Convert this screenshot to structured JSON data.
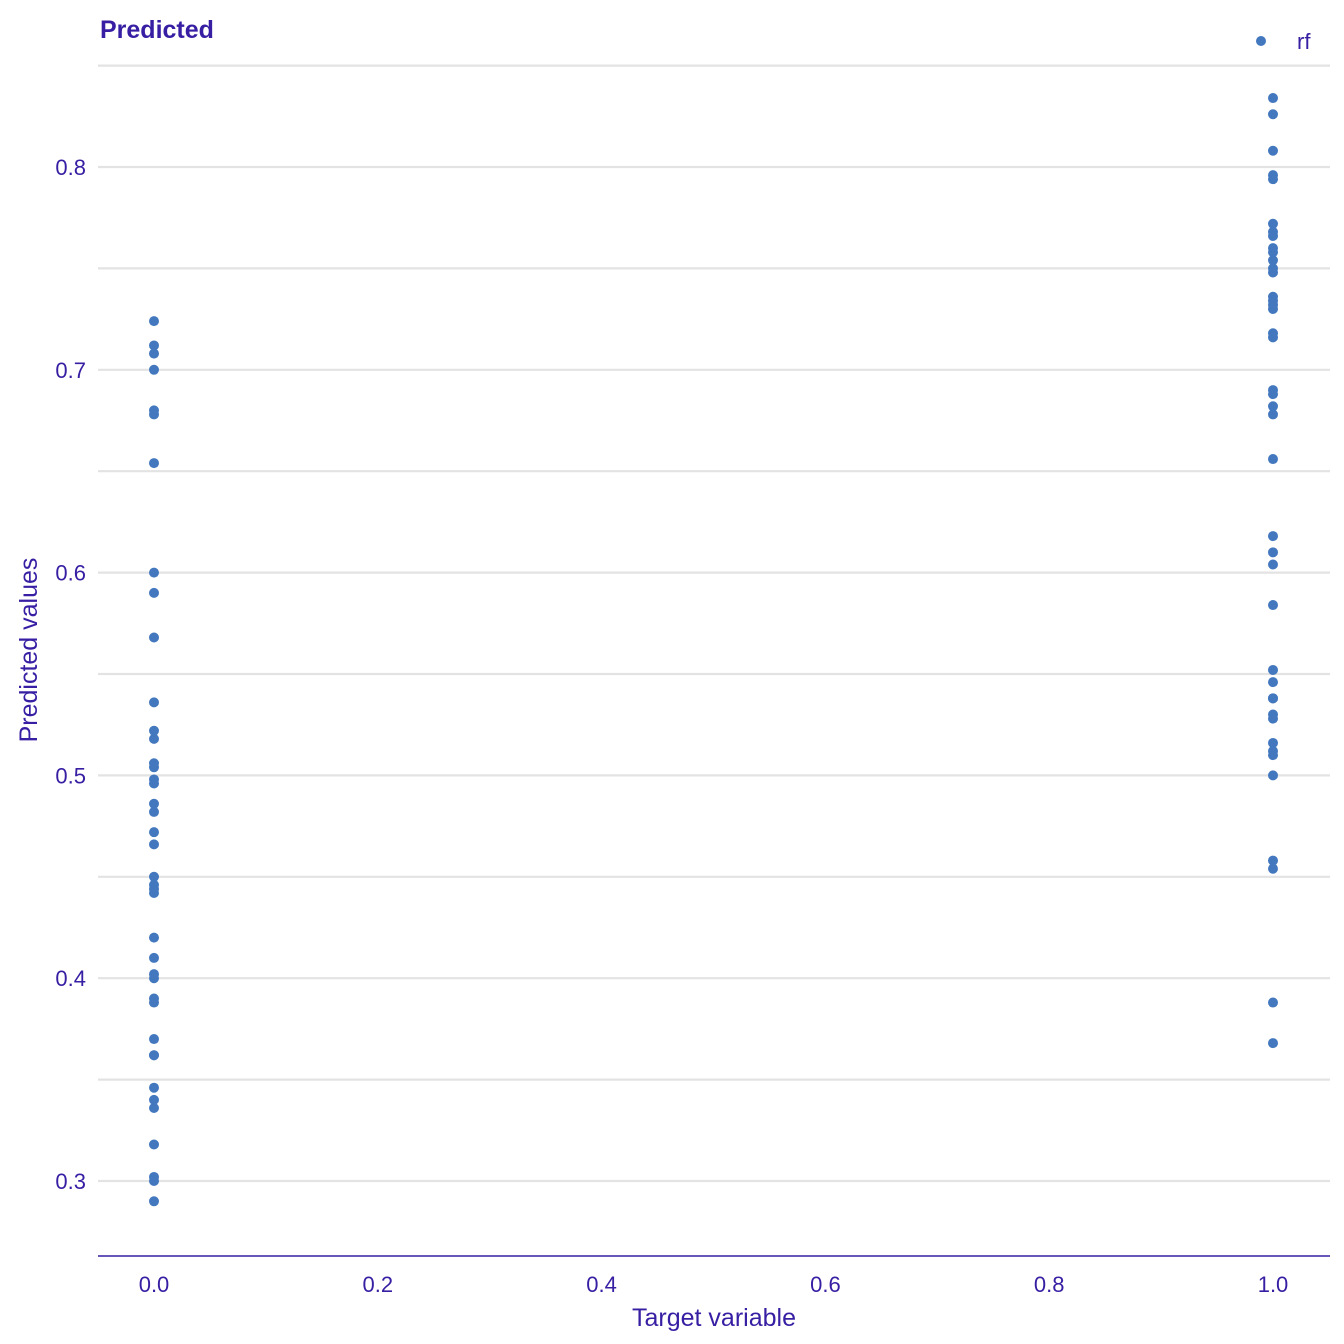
{
  "chart_data": {
    "type": "scatter",
    "title": "Predicted",
    "xlabel": "Target variable",
    "ylabel": "Predicted values",
    "xlim": [
      -0.08,
      1.08
    ],
    "ylim": [
      0.265,
      0.85
    ],
    "x_ticks": [
      0.0,
      0.2,
      0.4,
      0.6,
      0.8,
      1.0
    ],
    "x_tick_labels": [
      "0.0",
      "0.2",
      "0.4",
      "0.6",
      "0.8",
      "1.0"
    ],
    "y_ticks": [
      0.3,
      0.4,
      0.5,
      0.6,
      0.7,
      0.8
    ],
    "y_tick_labels": [
      "0.3",
      "0.4",
      "0.5",
      "0.6",
      "0.7",
      "0.8"
    ],
    "y_minor_gridlines": [
      0.35,
      0.45,
      0.55,
      0.65,
      0.75,
      0.85
    ],
    "grid": "horizontal",
    "legend_position": "top-right",
    "color": "#4378bf",
    "axis_color": "#371ea3",
    "series": [
      {
        "name": "rf",
        "points": [
          {
            "x": 0,
            "y": 0.724
          },
          {
            "x": 0,
            "y": 0.712
          },
          {
            "x": 0,
            "y": 0.708
          },
          {
            "x": 0,
            "y": 0.7
          },
          {
            "x": 0,
            "y": 0.68
          },
          {
            "x": 0,
            "y": 0.678
          },
          {
            "x": 0,
            "y": 0.654
          },
          {
            "x": 0,
            "y": 0.6
          },
          {
            "x": 0,
            "y": 0.59
          },
          {
            "x": 0,
            "y": 0.568
          },
          {
            "x": 0,
            "y": 0.536
          },
          {
            "x": 0,
            "y": 0.522
          },
          {
            "x": 0,
            "y": 0.518
          },
          {
            "x": 0,
            "y": 0.506
          },
          {
            "x": 0,
            "y": 0.504
          },
          {
            "x": 0,
            "y": 0.498
          },
          {
            "x": 0,
            "y": 0.496
          },
          {
            "x": 0,
            "y": 0.486
          },
          {
            "x": 0,
            "y": 0.482
          },
          {
            "x": 0,
            "y": 0.472
          },
          {
            "x": 0,
            "y": 0.466
          },
          {
            "x": 0,
            "y": 0.45
          },
          {
            "x": 0,
            "y": 0.446
          },
          {
            "x": 0,
            "y": 0.444
          },
          {
            "x": 0,
            "y": 0.442
          },
          {
            "x": 0,
            "y": 0.42
          },
          {
            "x": 0,
            "y": 0.41
          },
          {
            "x": 0,
            "y": 0.402
          },
          {
            "x": 0,
            "y": 0.4
          },
          {
            "x": 0,
            "y": 0.39
          },
          {
            "x": 0,
            "y": 0.388
          },
          {
            "x": 0,
            "y": 0.37
          },
          {
            "x": 0,
            "y": 0.362
          },
          {
            "x": 0,
            "y": 0.362
          },
          {
            "x": 0,
            "y": 0.346
          },
          {
            "x": 0,
            "y": 0.34
          },
          {
            "x": 0,
            "y": 0.336
          },
          {
            "x": 0,
            "y": 0.318
          },
          {
            "x": 0,
            "y": 0.302
          },
          {
            "x": 0,
            "y": 0.3
          },
          {
            "x": 0,
            "y": 0.29
          },
          {
            "x": 1,
            "y": 0.834
          },
          {
            "x": 1,
            "y": 0.826
          },
          {
            "x": 1,
            "y": 0.808
          },
          {
            "x": 1,
            "y": 0.796
          },
          {
            "x": 1,
            "y": 0.794
          },
          {
            "x": 1,
            "y": 0.772
          },
          {
            "x": 1,
            "y": 0.768
          },
          {
            "x": 1,
            "y": 0.766
          },
          {
            "x": 1,
            "y": 0.76
          },
          {
            "x": 1,
            "y": 0.758
          },
          {
            "x": 1,
            "y": 0.754
          },
          {
            "x": 1,
            "y": 0.75
          },
          {
            "x": 1,
            "y": 0.748
          },
          {
            "x": 1,
            "y": 0.736
          },
          {
            "x": 1,
            "y": 0.734
          },
          {
            "x": 1,
            "y": 0.732
          },
          {
            "x": 1,
            "y": 0.73
          },
          {
            "x": 1,
            "y": 0.718
          },
          {
            "x": 1,
            "y": 0.716
          },
          {
            "x": 1,
            "y": 0.69
          },
          {
            "x": 1,
            "y": 0.688
          },
          {
            "x": 1,
            "y": 0.682
          },
          {
            "x": 1,
            "y": 0.678
          },
          {
            "x": 1,
            "y": 0.656
          },
          {
            "x": 1,
            "y": 0.618
          },
          {
            "x": 1,
            "y": 0.61
          },
          {
            "x": 1,
            "y": 0.604
          },
          {
            "x": 1,
            "y": 0.584
          },
          {
            "x": 1,
            "y": 0.552
          },
          {
            "x": 1,
            "y": 0.546
          },
          {
            "x": 1,
            "y": 0.538
          },
          {
            "x": 1,
            "y": 0.538
          },
          {
            "x": 1,
            "y": 0.53
          },
          {
            "x": 1,
            "y": 0.528
          },
          {
            "x": 1,
            "y": 0.516
          },
          {
            "x": 1,
            "y": 0.512
          },
          {
            "x": 1,
            "y": 0.51
          },
          {
            "x": 1,
            "y": 0.5
          },
          {
            "x": 1,
            "y": 0.458
          },
          {
            "x": 1,
            "y": 0.454
          },
          {
            "x": 1,
            "y": 0.388
          },
          {
            "x": 1,
            "y": 0.368
          }
        ]
      }
    ]
  }
}
